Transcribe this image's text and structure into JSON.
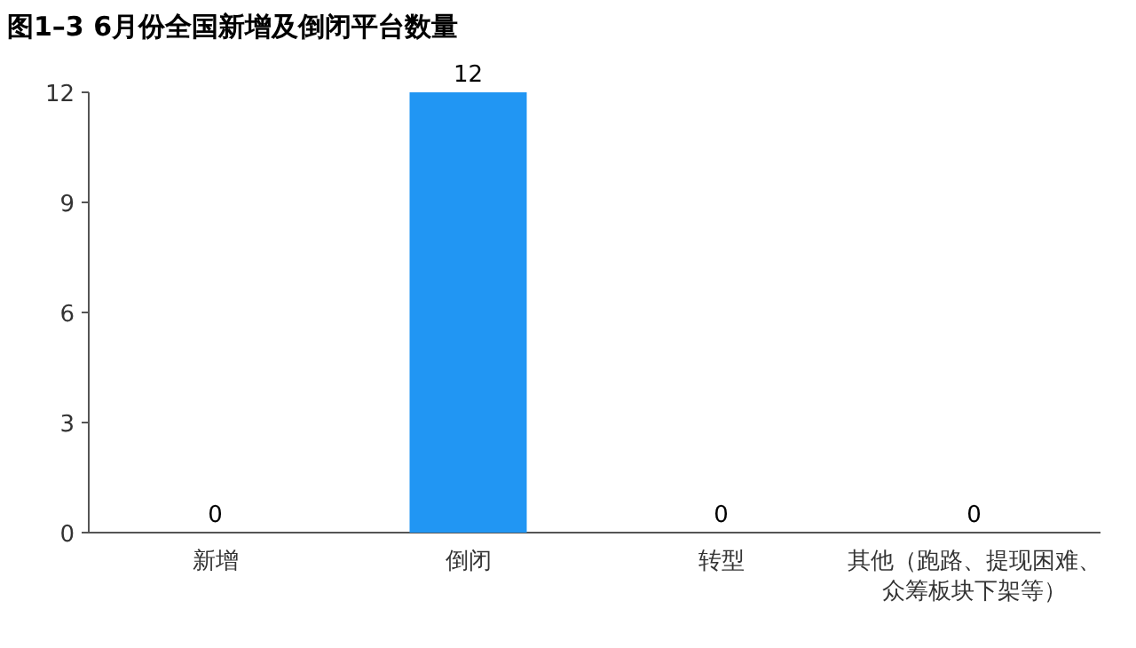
{
  "chart_data": {
    "type": "bar",
    "title": "图1–3  6月份全国新增及倒闭平台数量",
    "categories": [
      "新增",
      "倒闭",
      "转型",
      "其他（跑路、提现困难、众筹板块下架等）"
    ],
    "values": [
      0,
      12,
      0,
      0
    ],
    "color": "#2196f3",
    "ylim": [
      0,
      12
    ],
    "yticks": [
      0,
      3,
      6,
      9,
      12
    ],
    "data_labels": true,
    "grid": false
  }
}
